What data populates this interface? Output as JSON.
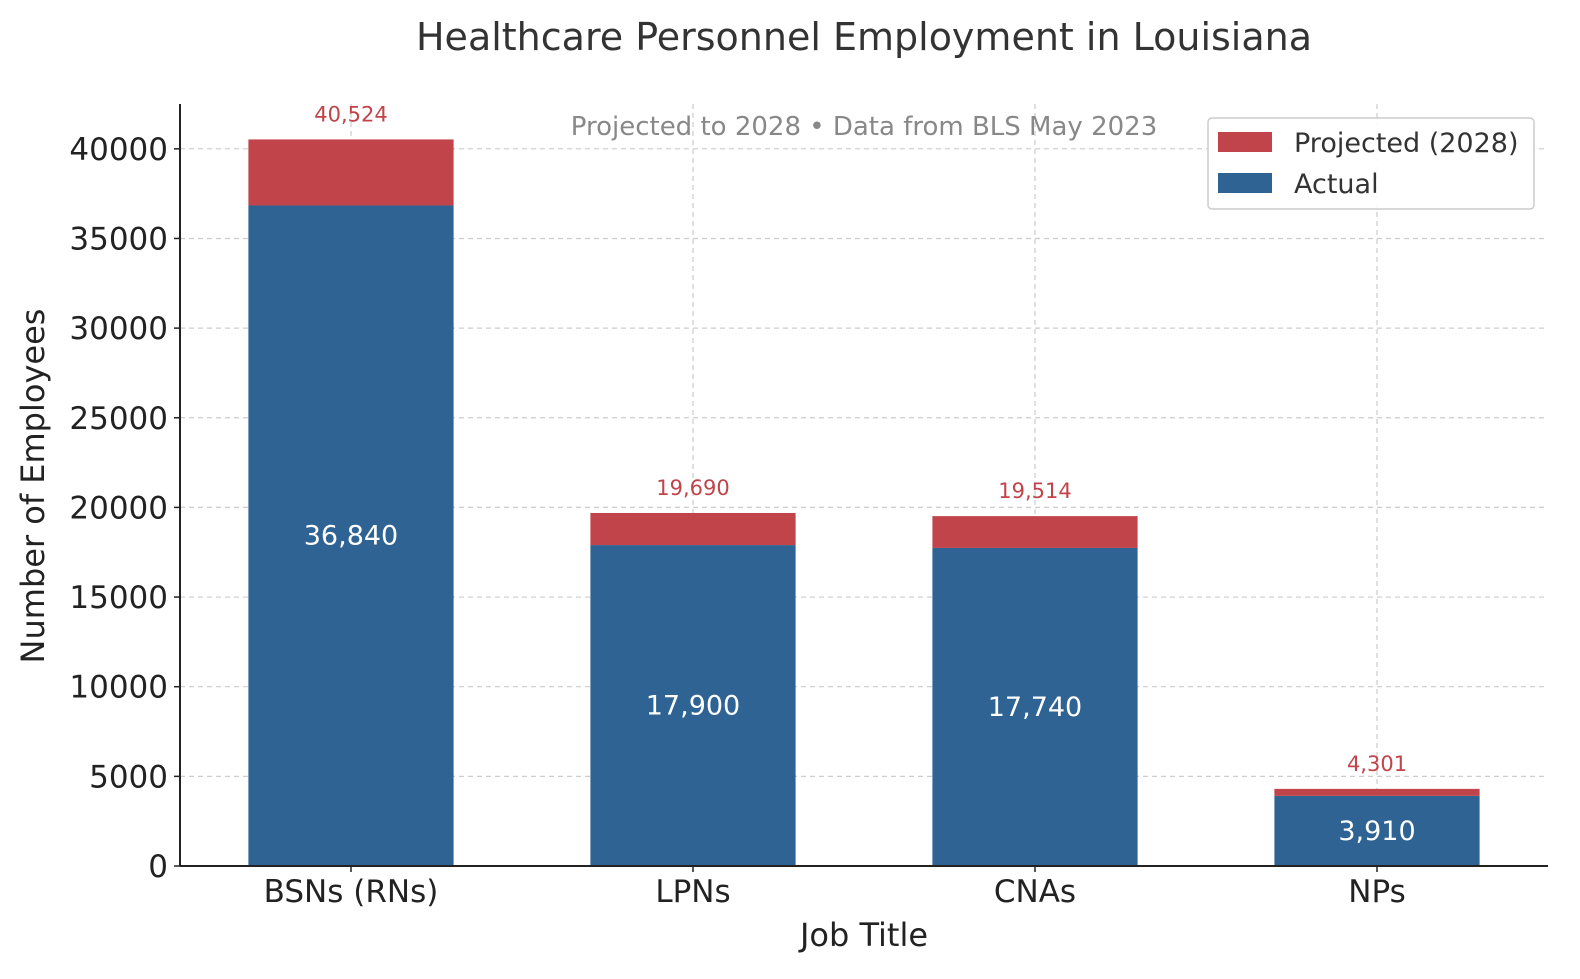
{
  "chart_data": {
    "type": "bar",
    "stacked": true,
    "title": "Healthcare Personnel Employment in Louisiana",
    "subtitle": "Projected to 2028 • Data from BLS May 2023",
    "xlabel": "Job Title",
    "ylabel": "Number of Employees",
    "categories": [
      "BSNs (RNs)",
      "LPNs",
      "CNAs",
      "NPs"
    ],
    "ylim": [
      0,
      42500
    ],
    "yticks": [
      0,
      5000,
      10000,
      15000,
      20000,
      25000,
      30000,
      35000,
      40000
    ],
    "grid": true,
    "legend_position": "top-right",
    "series": [
      {
        "name": "Actual",
        "values": [
          36840,
          17900,
          17740,
          3910
        ],
        "labels": [
          "36,840",
          "17,900",
          "17,740",
          "3,910"
        ],
        "color": "#2f6393"
      },
      {
        "name": "Projected (2028)",
        "totals": [
          40524,
          19690,
          19514,
          4301
        ],
        "labels": [
          "40,524",
          "19,690",
          "19,514",
          "4,301"
        ],
        "color": "#c0444a"
      }
    ],
    "legend": [
      {
        "name": "Projected (2028)",
        "color": "#c0444a"
      },
      {
        "name": "Actual",
        "color": "#2f6393"
      }
    ]
  }
}
